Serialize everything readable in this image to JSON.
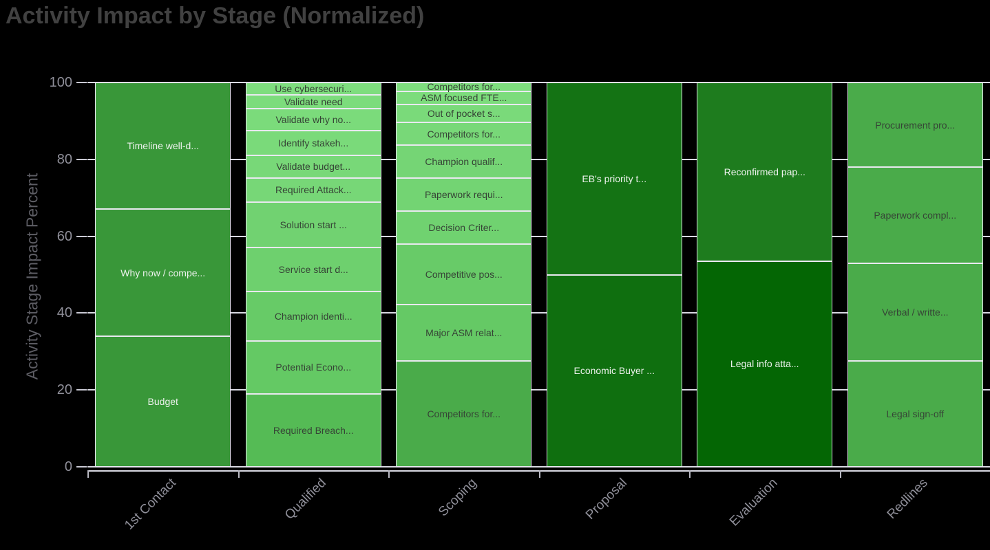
{
  "chart_data": {
    "type": "bar",
    "stacked": true,
    "normalized": true,
    "title": "Activity Impact by Stage (Normalized)",
    "ylabel": "Activity Stage Impact Percent",
    "xlabel": "",
    "ylim": [
      0,
      100
    ],
    "yticks": [
      0,
      20,
      40,
      60,
      80,
      100
    ],
    "grid": "stub-lines-visible-between-bars",
    "legend_position": "none",
    "background_color": "#000000",
    "categories": [
      "1st Contact",
      "Qualified",
      "Scoping",
      "Proposal",
      "Evaluation",
      "Redlines"
    ],
    "bars": [
      {
        "category": "1st Contact",
        "segments": [
          {
            "label": "Budget",
            "value": 34,
            "color": "#399739"
          },
          {
            "label": "Why now / compe...",
            "value": 33,
            "color": "#399739"
          },
          {
            "label": "Timeline well-d...",
            "value": 33,
            "color": "#399739"
          }
        ]
      },
      {
        "category": "Qualified",
        "segments": [
          {
            "label": "Required Breach...",
            "value": 19.0,
            "color": "#55bb55"
          },
          {
            "label": "Potential Econo...",
            "value": 13.8,
            "color": "#64c964"
          },
          {
            "label": "Champion identi...",
            "value": 12.9,
            "color": "#67cb67"
          },
          {
            "label": "Service start d...",
            "value": 11.4,
            "color": "#6ed06e"
          },
          {
            "label": "Solution start ...",
            "value": 11.8,
            "color": "#71d271"
          },
          {
            "label": "Required Attack...",
            "value": 6.3,
            "color": "#77d777"
          },
          {
            "label": "Validate budget...",
            "value": 5.9,
            "color": "#78d878"
          },
          {
            "label": "Identify stakeh...",
            "value": 6.4,
            "color": "#7ada7a"
          },
          {
            "label": "Validate why no...",
            "value": 5.7,
            "color": "#7bdb7b"
          },
          {
            "label": "Validate need",
            "value": 3.6,
            "color": "#7cdc7c"
          },
          {
            "label": "Use cybersecuri...",
            "value": 3.2,
            "color": "#7edd7e"
          }
        ]
      },
      {
        "category": "Scoping",
        "segments": [
          {
            "label": "Competitors for...",
            "value": 27.6,
            "color": "#4aab4a"
          },
          {
            "label": "Major ASM relat...",
            "value": 14.6,
            "color": "#65c965"
          },
          {
            "label": "Competitive pos...",
            "value": 15.8,
            "color": "#68cb68"
          },
          {
            "label": "Decision Criter...",
            "value": 8.6,
            "color": "#70d270"
          },
          {
            "label": "Paperwork requi...",
            "value": 8.5,
            "color": "#73d473"
          },
          {
            "label": "Champion qualif...",
            "value": 8.6,
            "color": "#75d575"
          },
          {
            "label": "Competitors for...",
            "value": 5.9,
            "color": "#78d878"
          },
          {
            "label": "Out of pocket s...",
            "value": 4.7,
            "color": "#7ada7a"
          },
          {
            "label": "ASM focused FTE...",
            "value": 3.4,
            "color": "#7cdc7c"
          },
          {
            "label": "Competitors for...",
            "value": 2.3,
            "color": "#7edd7e"
          }
        ]
      },
      {
        "category": "Proposal",
        "segments": [
          {
            "label": "Economic Buyer ...",
            "value": 50,
            "color": "#0f6f0f"
          },
          {
            "label": "EB's priority t...",
            "value": 50,
            "color": "#147314"
          }
        ]
      },
      {
        "category": "Evaluation",
        "segments": [
          {
            "label": "Legal info atta...",
            "value": 53.5,
            "color": "#046604"
          },
          {
            "label": "Reconfirmed pap...",
            "value": 46.5,
            "color": "#1e7c1e"
          }
        ]
      },
      {
        "category": "Redlines",
        "segments": [
          {
            "label": "Legal sign-off",
            "value": 27.5,
            "color": "#4aab4a"
          },
          {
            "label": "Verbal / writte...",
            "value": 25.5,
            "color": "#4aab4a"
          },
          {
            "label": "Paperwork compl...",
            "value": 25,
            "color": "#4aab4a"
          },
          {
            "label": "Procurement pro...",
            "value": 22,
            "color": "#4aab4a"
          }
        ]
      }
    ]
  },
  "style_colors": {
    "title_text": "#414141",
    "axis_title_text": "#5d5d64",
    "tick_label_text": "#8f8f99",
    "grid_and_axis": "#d9d9e3",
    "segment_border": "#e9e9f0",
    "label_on_dark_green": "#edf2ed",
    "label_on_light_green": "#364436"
  }
}
